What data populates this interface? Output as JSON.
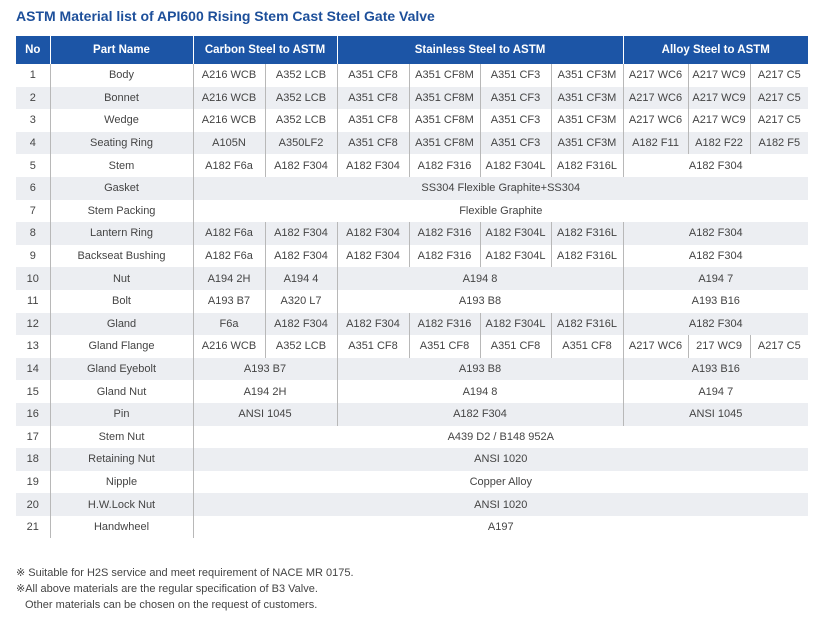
{
  "title": "ASTM Material list of API600 Rising Stem Cast Steel Gate Valve",
  "table": {
    "header": [
      "No",
      "Part Name",
      "Carbon Steel to ASTM",
      "Stainless Steel to ASTM",
      "Alloy Steel to ASTM"
    ],
    "rows": [
      [
        "1",
        "Body",
        "A216 WCB",
        "A352 LCB",
        "A351 CF8",
        "A351 CF8M",
        "A351 CF3",
        "A351 CF3M",
        "A217 WC6",
        "A217 WC9",
        "A217 C5"
      ],
      [
        "2",
        "Bonnet",
        "A216 WCB",
        "A352 LCB",
        "A351 CF8",
        "A351 CF8M",
        "A351 CF3",
        "A351 CF3M",
        "A217 WC6",
        "A217 WC9",
        "A217 C5"
      ],
      [
        "3",
        "Wedge",
        "A216 WCB",
        "A352 LCB",
        "A351 CF8",
        "A351 CF8M",
        "A351 CF3",
        "A351 CF3M",
        "A217 WC6",
        "A217 WC9",
        "A217 C5"
      ],
      [
        "4",
        "Seating Ring",
        "A105N",
        "A350LF2",
        "A351 CF8",
        "A351 CF8M",
        "A351 CF3",
        "A351 CF3M",
        "A182 F11",
        "A182 F22",
        "A182 F5"
      ],
      [
        "5",
        "Stem",
        "A182 F6a",
        "A182 F304",
        "A182 F304",
        "A182 F316",
        "A182 F304L",
        "A182 F316L",
        "A182 F304"
      ],
      [
        "6",
        "Gasket",
        "SS304 Flexible Graphite+SS304"
      ],
      [
        "7",
        "Stem Packing",
        "Flexible Graphite"
      ],
      [
        "8",
        "Lantern Ring",
        "A182 F6a",
        "A182 F304",
        "A182 F304",
        "A182 F316",
        "A182 F304L",
        "A182 F316L",
        "A182 F304"
      ],
      [
        "9",
        "Backseat Bushing",
        "A182 F6a",
        "A182 F304",
        "A182 F304",
        "A182 F316",
        "A182 F304L",
        "A182 F316L",
        "A182 F304"
      ],
      [
        "10",
        "Nut",
        "A194 2H",
        "A194 4",
        "A194 8",
        "A194 7"
      ],
      [
        "11",
        "Bolt",
        "A193 B7",
        "A320 L7",
        "A193 B8",
        "A193 B16"
      ],
      [
        "12",
        "Gland",
        "F6a",
        "A182 F304",
        "A182 F304",
        "A182 F316",
        "A182 F304L",
        "A182 F316L",
        "A182 F304"
      ],
      [
        "13",
        "Gland Flange",
        "A216 WCB",
        "A352 LCB",
        "A351 CF8",
        "A351 CF8",
        "A351 CF8",
        "A351 CF8",
        "A217 WC6",
        "217 WC9",
        "A217 C5"
      ],
      [
        "14",
        "Gland Eyebolt",
        "A193 B7",
        "A193 B8",
        "A193 B16"
      ],
      [
        "15",
        "Gland Nut",
        "A194 2H",
        "A194 8",
        "A194 7"
      ],
      [
        "16",
        "Pin",
        "ANSI 1045",
        "A182 F304",
        "ANSI 1045"
      ],
      [
        "17",
        "Stem Nut",
        "A439 D2 / B148 952A"
      ],
      [
        "18",
        "Retaining Nut",
        "ANSI 1020"
      ],
      [
        "19",
        "Nipple",
        "Copper Alloy"
      ],
      [
        "20",
        "H.W.Lock Nut",
        "ANSI 1020"
      ],
      [
        "21",
        "Handwheel",
        "A197"
      ]
    ]
  },
  "notes": [
    "※ Suitable for H2S service and meet requirement of NACE MR 0175.",
    "※All above materials are the regular specification of B3 Valve.",
    "Other materials can be chosen on the request of customers."
  ]
}
